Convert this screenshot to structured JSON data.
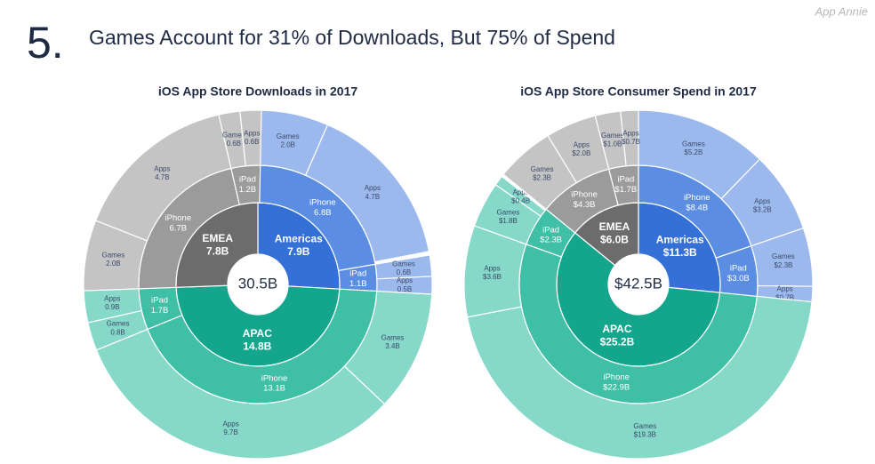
{
  "header": {
    "number": "5.",
    "title": "Games Account for 31% of Downloads, But 75% of Spend",
    "brand": "App Annie"
  },
  "chart_data": [
    {
      "type": "sunburst",
      "title": "iOS App Store Downloads in 2017",
      "total": 30.5,
      "total_label": "30.5B",
      "regions": [
        {
          "name": "Americas",
          "value": 7.9,
          "value_label": "7.9B",
          "colors": [
            "#3570d6",
            "#5b8ee3",
            "#9cb9ee"
          ],
          "children": [
            {
              "name": "iPhone",
              "value": 6.8,
              "value_label": "6.8B",
              "children": [
                {
                  "name": "Games",
                  "value": 2.0,
                  "value_label": "2.0B"
                },
                {
                  "name": "Apps",
                  "value": 4.7,
                  "value_label": "4.7B"
                }
              ]
            },
            {
              "name": "iPad",
              "value": 1.1,
              "value_label": "1.1B",
              "children": [
                {
                  "name": "Games",
                  "value": 0.6,
                  "value_label": "0.6B"
                },
                {
                  "name": "Apps",
                  "value": 0.5,
                  "value_label": "0.5B"
                }
              ]
            }
          ]
        },
        {
          "name": "APAC",
          "value": 14.8,
          "value_label": "14.8B",
          "colors": [
            "#13a68c",
            "#3fbfa6",
            "#86d8c8"
          ],
          "children": [
            {
              "name": "iPhone",
              "value": 13.1,
              "value_label": "13.1B",
              "children": [
                {
                  "name": "Games",
                  "value": 3.4,
                  "value_label": "3.4B"
                },
                {
                  "name": "Apps",
                  "value": 9.7,
                  "value_label": "9.7B"
                }
              ]
            },
            {
              "name": "iPad",
              "value": 1.7,
              "value_label": "1.7B",
              "children": [
                {
                  "name": "Games",
                  "value": 0.8,
                  "value_label": "0.8B"
                },
                {
                  "name": "Apps",
                  "value": 0.9,
                  "value_label": "0.9B"
                }
              ]
            }
          ]
        },
        {
          "name": "EMEA",
          "value": 7.8,
          "value_label": "7.8B",
          "colors": [
            "#6c6c6c",
            "#9b9b9b",
            "#c4c4c4"
          ],
          "children": [
            {
              "name": "iPhone",
              "value": 6.7,
              "value_label": "6.7B",
              "children": [
                {
                  "name": "Games",
                  "value": 2.0,
                  "value_label": "2.0B"
                },
                {
                  "name": "Apps",
                  "value": 4.7,
                  "value_label": "4.7B"
                }
              ]
            },
            {
              "name": "iPad",
              "value": 1.2,
              "value_label": "1.2B",
              "children": [
                {
                  "name": "Games",
                  "value": 0.6,
                  "value_label": "0.6B"
                },
                {
                  "name": "Apps",
                  "value": 0.6,
                  "value_label": "0.6B"
                }
              ]
            }
          ]
        }
      ]
    },
    {
      "type": "sunburst",
      "title": "iOS App Store Consumer Spend in 2017",
      "total": 42.5,
      "total_label": "$42.5B",
      "regions": [
        {
          "name": "Americas",
          "value": 11.3,
          "value_label": "$11.3B",
          "colors": [
            "#3570d6",
            "#5b8ee3",
            "#9cb9ee"
          ],
          "children": [
            {
              "name": "iPhone",
              "value": 8.4,
              "value_label": "$8.4B",
              "children": [
                {
                  "name": "Games",
                  "value": 5.2,
                  "value_label": "$5.2B"
                },
                {
                  "name": "Apps",
                  "value": 3.2,
                  "value_label": "$3.2B"
                }
              ]
            },
            {
              "name": "iPad",
              "value": 3.0,
              "value_label": "$3.0B",
              "children": [
                {
                  "name": "Games",
                  "value": 2.3,
                  "value_label": "$2.3B"
                },
                {
                  "name": "Apps",
                  "value": 0.7,
                  "value_label": "$0.7B"
                }
              ]
            }
          ]
        },
        {
          "name": "APAC",
          "value": 25.2,
          "value_label": "$25.2B",
          "colors": [
            "#13a68c",
            "#3fbfa6",
            "#86d8c8"
          ],
          "children": [
            {
              "name": "iPhone",
              "value": 22.9,
              "value_label": "$22.9B",
              "children": [
                {
                  "name": "Games",
                  "value": 19.3,
                  "value_label": "$19.3B"
                },
                {
                  "name": "Apps",
                  "value": 3.6,
                  "value_label": "$3.6B"
                }
              ]
            },
            {
              "name": "iPad",
              "value": 2.3,
              "value_label": "$2.3B",
              "children": [
                {
                  "name": "Games",
                  "value": 1.8,
                  "value_label": "$1.8B"
                },
                {
                  "name": "Apps",
                  "value": 0.4,
                  "value_label": "$0.4B"
                }
              ]
            }
          ]
        },
        {
          "name": "EMEA",
          "value": 6.0,
          "value_label": "$6.0B",
          "colors": [
            "#6c6c6c",
            "#9b9b9b",
            "#c4c4c4"
          ],
          "children": [
            {
              "name": "iPhone",
              "value": 4.3,
              "value_label": "$4.3B",
              "children": [
                {
                  "name": "Games",
                  "value": 2.3,
                  "value_label": "$2.3B"
                },
                {
                  "name": "Apps",
                  "value": 2.0,
                  "value_label": "$2.0B"
                }
              ]
            },
            {
              "name": "iPad",
              "value": 1.7,
              "value_label": "$1.7B",
              "children": [
                {
                  "name": "Games",
                  "value": 1.0,
                  "value_label": "$1.0B"
                },
                {
                  "name": "Apps",
                  "value": 0.7,
                  "value_label": "$0.7B"
                }
              ]
            }
          ]
        }
      ]
    }
  ]
}
